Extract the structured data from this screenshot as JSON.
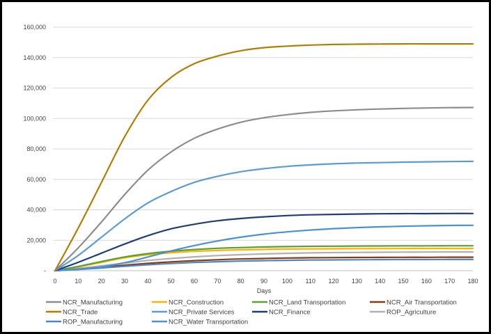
{
  "chart_data": {
    "type": "line",
    "title": "",
    "xlabel": "Days",
    "ylabel": "",
    "xlim": [
      0,
      180
    ],
    "ylim": [
      0,
      160000
    ],
    "grid": true,
    "legend_position": "bottom",
    "x_ticks": [
      0,
      10,
      20,
      30,
      40,
      50,
      60,
      70,
      80,
      90,
      100,
      110,
      120,
      130,
      140,
      150,
      160,
      170,
      180
    ],
    "y_ticks": [
      "-",
      "20,000",
      "40,000",
      "60,000",
      "80,000",
      "100,000",
      "120,000",
      "140,000",
      "160,000"
    ],
    "y_tick_values": [
      0,
      20000,
      40000,
      60000,
      80000,
      100000,
      120000,
      140000,
      160000
    ],
    "x": [
      0,
      10,
      20,
      30,
      40,
      50,
      60,
      70,
      80,
      90,
      100,
      110,
      120,
      130,
      140,
      150,
      160,
      170,
      180
    ],
    "series": [
      {
        "name": "NCR_Manufacturing",
        "color": "#8c8c8c",
        "values": [
          0,
          15000,
          32000,
          50000,
          66000,
          78000,
          87000,
          93000,
          97500,
          100500,
          102500,
          104000,
          105000,
          105700,
          106200,
          106600,
          106900,
          107100,
          107200
        ]
      },
      {
        "name": "NCR_Construction",
        "color": "#ffb000",
        "values": [
          0,
          2500,
          5500,
          8500,
          10500,
          11800,
          12700,
          13300,
          13700,
          14000,
          14200,
          14300,
          14400,
          14450,
          14500,
          14550,
          14600,
          14600,
          14600
        ]
      },
      {
        "name": "NCR_Land Transportation",
        "color": "#5aa02c",
        "values": [
          0,
          2800,
          6000,
          9000,
          11200,
          12800,
          13900,
          14700,
          15200,
          15600,
          15800,
          16000,
          16100,
          16200,
          16250,
          16300,
          16300,
          16350,
          16350
        ]
      },
      {
        "name": "NCR_Air Transportation",
        "color": "#8b3a0f",
        "values": [
          0,
          1000,
          2200,
          3600,
          4800,
          5800,
          6600,
          7200,
          7700,
          8000,
          8300,
          8500,
          8600,
          8700,
          8750,
          8800,
          8800,
          8850,
          8850
        ]
      },
      {
        "name": "NCR_Trade",
        "color": "#b07d00",
        "values": [
          0,
          28000,
          58000,
          88000,
          112000,
          127000,
          136000,
          141000,
          144500,
          146500,
          147500,
          148200,
          148600,
          148800,
          148900,
          149000,
          149000,
          149000,
          149000
        ]
      },
      {
        "name": "NCR_Private Services",
        "color": "#5b9bd5",
        "values": [
          0,
          10000,
          22000,
          34000,
          44500,
          52000,
          58000,
          62000,
          65000,
          67000,
          68500,
          69500,
          70200,
          70700,
          71000,
          71300,
          71500,
          71700,
          71800
        ]
      },
      {
        "name": "NCR_Finance",
        "color": "#1f3c7a",
        "values": [
          0,
          5500,
          11500,
          17500,
          23000,
          27500,
          30500,
          32800,
          34300,
          35400,
          36200,
          36700,
          37000,
          37200,
          37400,
          37500,
          37500,
          37600,
          37600
        ]
      },
      {
        "name": "ROP_Agriculture",
        "color": "#b0b0b0",
        "values": [
          0,
          1500,
          3200,
          5000,
          6700,
          8000,
          9100,
          9900,
          10500,
          11000,
          11400,
          11700,
          11900,
          12000,
          12100,
          12200,
          12250,
          12300,
          12300
        ]
      },
      {
        "name": "ROP_Manufacturing",
        "color": "#4a86c8",
        "values": [
          0,
          800,
          1800,
          2900,
          3900,
          4700,
          5400,
          5900,
          6300,
          6600,
          6800,
          7000,
          7100,
          7200,
          7250,
          7300,
          7300,
          7350,
          7350
        ]
      },
      {
        "name": "NCR_Water Transportation",
        "color": "#4a90d9",
        "values": [
          0,
          1000,
          2500,
          5200,
          9000,
          13000,
          16500,
          19500,
          22000,
          24000,
          25500,
          26700,
          27600,
          28300,
          28800,
          29200,
          29500,
          29700,
          29800
        ]
      }
    ]
  }
}
